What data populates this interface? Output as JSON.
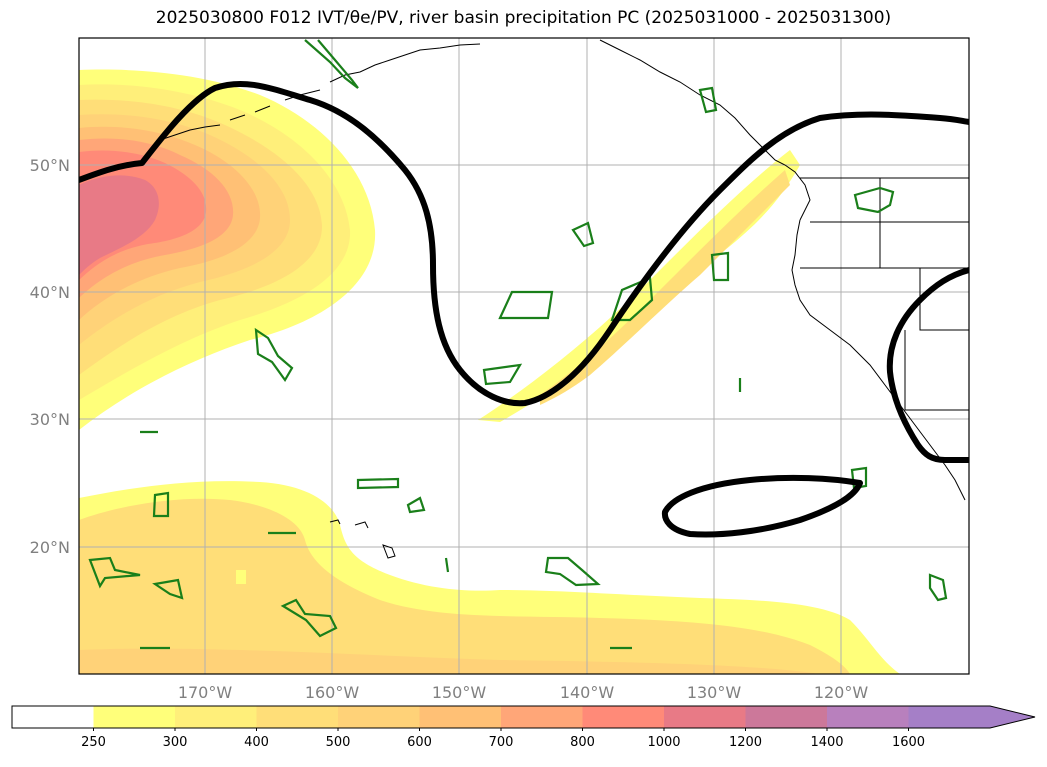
{
  "title": {
    "run": "2025030800 F012",
    "fields": "IVT/θe/PV",
    "rest": ", river basin precipitation PC (2025031000 - 2025031300)"
  },
  "map": {
    "projection": "plate-carree",
    "extent": {
      "lon_min": -180,
      "lon_max": -110,
      "lat_min": 10,
      "lat_max": 60
    },
    "gridlines": true,
    "lat_labels": [
      "20°N",
      "30°N",
      "40°N",
      "50°N"
    ],
    "lon_labels": [
      "170°W",
      "160°W",
      "150°W",
      "140°W",
      "130°W",
      "120°W"
    ],
    "colors": {
      "pv_contour": "#000000",
      "theta_e_contour": "#1a7f1a",
      "coastline": "#000000",
      "grid": "#b0b0b0"
    }
  },
  "colorbar": {
    "levels": [
      "250",
      "300",
      "400",
      "500",
      "600",
      "700",
      "800",
      "1000",
      "1200",
      "1400",
      "1600"
    ],
    "colors": [
      "#ffffff",
      "#ffff7a",
      "#ffef7a",
      "#ffde78",
      "#ffd278",
      "#ffc075",
      "#ffa678",
      "#ff8a78",
      "#e87a86",
      "#cc789a",
      "#b880bd",
      "#a57fc7"
    ],
    "extend": "max"
  }
}
